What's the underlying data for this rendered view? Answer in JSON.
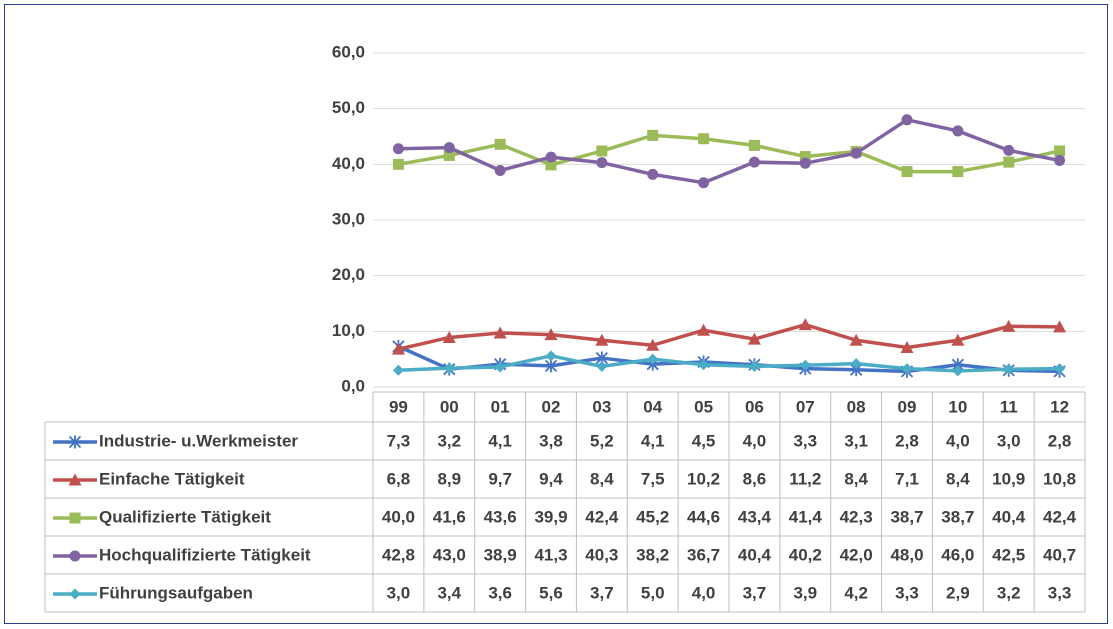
{
  "chart_data": {
    "type": "line",
    "categories": [
      "99",
      "00",
      "01",
      "02",
      "03",
      "04",
      "05",
      "06",
      "07",
      "08",
      "09",
      "10",
      "11",
      "12"
    ],
    "series": [
      {
        "name": "Industrie- u.Werkmeister",
        "color": "#4472c4",
        "marker": "star",
        "values": [
          7.3,
          3.2,
          4.1,
          3.8,
          5.2,
          4.1,
          4.5,
          4.0,
          3.3,
          3.1,
          2.8,
          4.0,
          3.0,
          2.8
        ],
        "value_labels": [
          "7,3",
          "3,2",
          "4,1",
          "3,8",
          "5,2",
          "4,1",
          "4,5",
          "4,0",
          "3,3",
          "3,1",
          "2,8",
          "4,0",
          "3,0",
          "2,8"
        ]
      },
      {
        "name": "Einfache Tätigkeit",
        "color": "#c0504d",
        "marker": "triangle",
        "values": [
          6.8,
          8.9,
          9.7,
          9.4,
          8.4,
          7.5,
          10.2,
          8.6,
          11.2,
          8.4,
          7.1,
          8.4,
          10.9,
          10.8
        ],
        "value_labels": [
          "6,8",
          "8,9",
          "9,7",
          "9,4",
          "8,4",
          "7,5",
          "10,2",
          "8,6",
          "11,2",
          "8,4",
          "7,1",
          "8,4",
          "10,9",
          "10,8"
        ]
      },
      {
        "name": "Qualifizierte Tätigkeit",
        "color": "#9bbb59",
        "marker": "square",
        "values": [
          40.0,
          41.6,
          43.6,
          39.9,
          42.4,
          45.2,
          44.6,
          43.4,
          41.4,
          42.3,
          38.7,
          38.7,
          40.4,
          42.4
        ],
        "value_labels": [
          "40,0",
          "41,6",
          "43,6",
          "39,9",
          "42,4",
          "45,2",
          "44,6",
          "43,4",
          "41,4",
          "42,3",
          "38,7",
          "38,7",
          "40,4",
          "42,4"
        ]
      },
      {
        "name": "Hochqualifizierte Tätigkeit",
        "color": "#8064a2",
        "marker": "circle",
        "values": [
          42.8,
          43.0,
          38.9,
          41.3,
          40.3,
          38.2,
          36.7,
          40.4,
          40.2,
          42.0,
          48.0,
          46.0,
          42.5,
          40.7
        ],
        "value_labels": [
          "42,8",
          "43,0",
          "38,9",
          "41,3",
          "40,3",
          "38,2",
          "36,7",
          "40,4",
          "40,2",
          "42,0",
          "48,0",
          "46,0",
          "42,5",
          "40,7"
        ]
      },
      {
        "name": "Führungsaufgaben",
        "color": "#4bacc6",
        "marker": "diamond",
        "values": [
          3.0,
          3.4,
          3.6,
          5.6,
          3.7,
          5.0,
          4.0,
          3.7,
          3.9,
          4.2,
          3.3,
          2.9,
          3.2,
          3.3
        ],
        "value_labels": [
          "3,0",
          "3,4",
          "3,6",
          "5,6",
          "3,7",
          "5,0",
          "4,0",
          "3,7",
          "3,9",
          "4,2",
          "3,3",
          "2,9",
          "3,2",
          "3,3"
        ]
      }
    ],
    "ylim": [
      0,
      60
    ],
    "yticks": [
      {
        "value": 0,
        "label": "0,0"
      },
      {
        "value": 10,
        "label": "10,0"
      },
      {
        "value": 20,
        "label": "20,0"
      },
      {
        "value": 30,
        "label": "30,0"
      },
      {
        "value": 40,
        "label": "40,0"
      },
      {
        "value": 50,
        "label": "50,0"
      },
      {
        "value": 60,
        "label": "60,0"
      }
    ],
    "grid": true,
    "data_table": true
  }
}
